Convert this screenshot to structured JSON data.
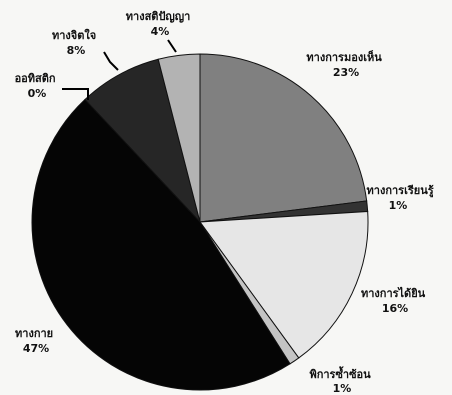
{
  "chart_data": {
    "type": "pie",
    "slices": [
      {
        "label": "ทางการมองเห็น",
        "value": 23,
        "value_label": "23%",
        "color": "#808080"
      },
      {
        "label": "ทางการเรียนรู้",
        "value": 1,
        "value_label": "1%",
        "color": "#333333"
      },
      {
        "label": "ทางการได้ยิน",
        "value": 16,
        "value_label": "16%",
        "color": "#e6e6e6"
      },
      {
        "label": "พิการซ้ำซ้อน",
        "value": 1,
        "value_label": "1%",
        "color": "#c4c4c4"
      },
      {
        "label": "ทางกาย",
        "value": 47,
        "value_label": "47%",
        "color": "#050505"
      },
      {
        "label": "ออทิสติก",
        "value": 0,
        "value_label": "0%",
        "color": "#1a1a1a"
      },
      {
        "label": "ทางจิตใจ",
        "value": 8,
        "value_label": "8%",
        "color": "#262626"
      },
      {
        "label": "ทางสติปัญญา",
        "value": 4,
        "value_label": "4%",
        "color": "#b3b3b3"
      }
    ],
    "start_angle_deg": 0,
    "direction": "clockwise",
    "legend": "none",
    "labels": "outside"
  }
}
